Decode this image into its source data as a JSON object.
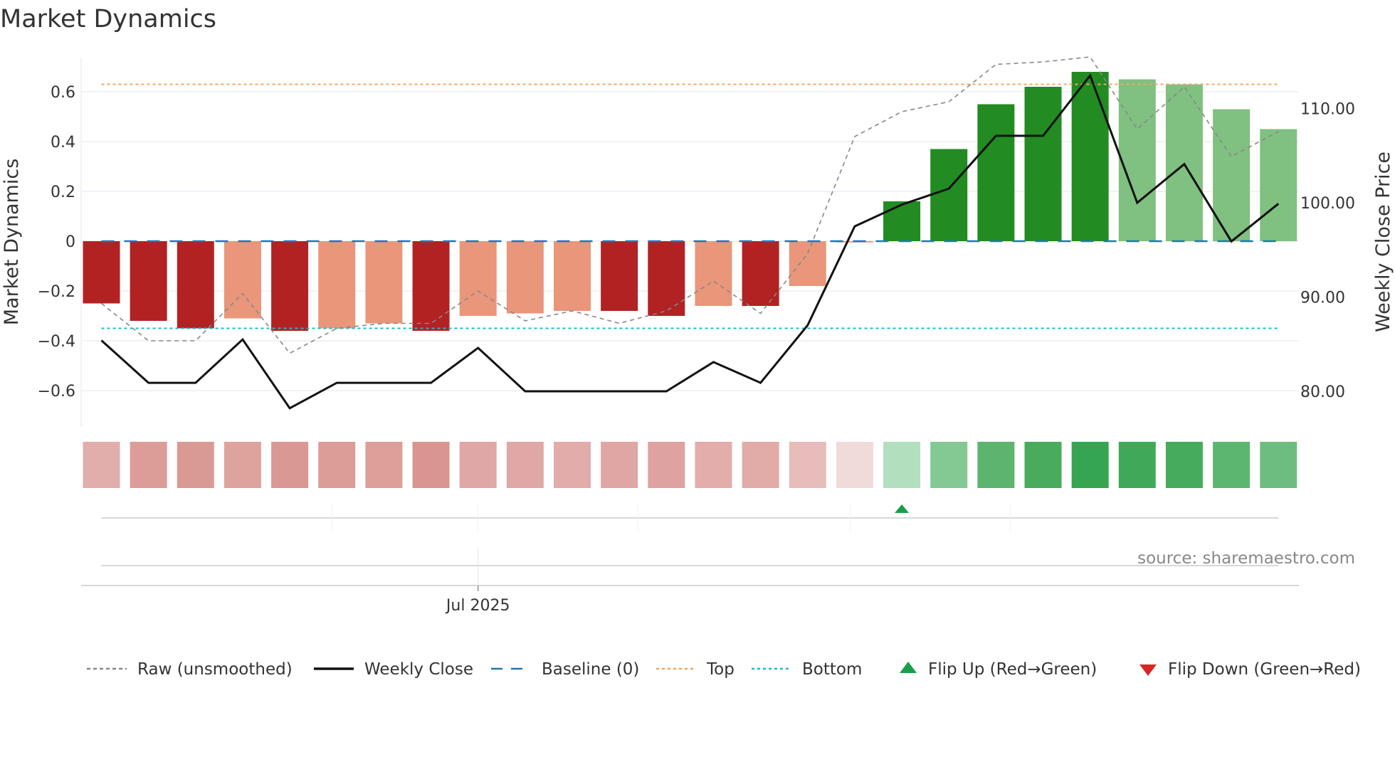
{
  "chart_data": {
    "type": "bar",
    "title": "Market Dynamics",
    "ylabel": "Market Dynamics",
    "y2label": "Weekly Close Price",
    "ylim": [
      -0.75,
      0.75
    ],
    "y2lim": [
      76.5,
      116.3
    ],
    "yticks": [
      "0.6",
      "0.4",
      "0.2",
      "0",
      "−0.2",
      "−0.4",
      "−0.6"
    ],
    "ytick_values": [
      0.6,
      0.4,
      0.2,
      0,
      -0.2,
      -0.4,
      -0.6
    ],
    "y2ticks": [
      "110.00",
      "100.00",
      "90.00",
      "80.00"
    ],
    "y2tick_values": [
      110,
      100,
      90,
      80
    ],
    "xtick_label": "Jul 2025",
    "xtick_index": 8,
    "timeline_tick_indices": [
      4.9,
      8,
      11.4,
      15.9,
      19.3
    ],
    "grid": true,
    "legend_placement": "bottom",
    "source": "source: sharemaestro.com",
    "top_level": 0.63,
    "bottom_level": -0.35,
    "bars": {
      "values": [
        -0.25,
        -0.32,
        -0.35,
        -0.31,
        -0.36,
        -0.35,
        -0.33,
        -0.36,
        -0.3,
        -0.29,
        -0.28,
        -0.28,
        -0.3,
        -0.26,
        -0.26,
        -0.18,
        -0.005,
        0.16,
        0.37,
        0.55,
        0.62,
        0.68,
        0.65,
        0.63,
        0.53,
        0.45
      ],
      "strong": [
        true,
        true,
        true,
        false,
        true,
        false,
        false,
        true,
        false,
        false,
        false,
        true,
        true,
        false,
        true,
        false,
        false,
        true,
        true,
        true,
        true,
        true,
        false,
        false,
        false,
        false
      ]
    },
    "raw": [
      -0.25,
      -0.4,
      -0.4,
      -0.21,
      -0.45,
      -0.35,
      -0.33,
      -0.33,
      -0.2,
      -0.32,
      -0.28,
      -0.33,
      -0.28,
      -0.16,
      -0.29,
      -0.05,
      0.42,
      0.52,
      0.56,
      0.71,
      0.72,
      0.74,
      0.45,
      0.62,
      0.34,
      0.44
    ],
    "weekly_close": [
      85.4,
      80.9,
      80.9,
      85.5,
      78.2,
      80.9,
      80.9,
      80.9,
      84.6,
      80.0,
      80.0,
      80.0,
      80.0,
      83.1,
      80.9,
      87.0,
      97.5,
      99.8,
      101.5,
      107.1,
      107.1,
      113.5,
      100.0,
      104.1,
      95.9,
      99.9
    ],
    "strip_colors": [
      "#e2aeab",
      "#dc9d98",
      "#da9a94",
      "#dea39d",
      "#d99893",
      "#dc9c97",
      "#dd9f9a",
      "#d9958f",
      "#dfa7a5",
      "#dfa8a6",
      "#e1acaa",
      "#dfa6a4",
      "#dea2a0",
      "#e2adab",
      "#e1aba8",
      "#e7bcbb",
      "#f1dada",
      "#b2dfbd",
      "#84c893",
      "#5cb46e",
      "#48ac5c",
      "#36a551",
      "#3fa957",
      "#46ac5c",
      "#5db670",
      "#6ebd80"
    ],
    "flip_up_indices": [
      17
    ],
    "flip_down_indices": [],
    "colors": {
      "strong_red": "#b22222",
      "weak_red": "#e9967a",
      "strong_green": "#228b22",
      "weak_green": "#80c080",
      "raw": "#888888",
      "close": "#111111",
      "baseline": "#1f77b4",
      "top": "#f4a460",
      "bottom": "#17becf",
      "flip_up": "#1a9e4a",
      "flip_down": "#d62728"
    },
    "legend": [
      {
        "key": "raw",
        "label": "Raw (unsmoothed)"
      },
      {
        "key": "close",
        "label": "Weekly Close"
      },
      {
        "key": "baseline",
        "label": "Baseline (0)"
      },
      {
        "key": "top",
        "label": "Top"
      },
      {
        "key": "bottom",
        "label": "Bottom"
      },
      {
        "key": "flip_up",
        "label": "Flip Up (Red→Green)"
      },
      {
        "key": "flip_down",
        "label": "Flip Down (Green→Red)"
      }
    ]
  }
}
